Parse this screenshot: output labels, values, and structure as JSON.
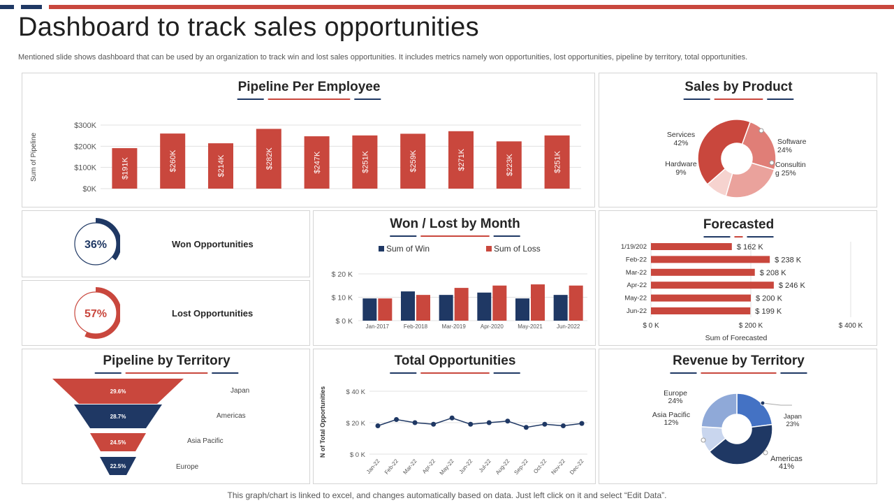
{
  "colors": {
    "red": "#c9473d",
    "navy": "#1f3864",
    "light_red": "#e8908a",
    "pale_red": "#f3c9c5",
    "blue": "#4472c4",
    "light_blue": "#8fa9d8",
    "pale_blue": "#c9d6ee",
    "grid": "#e0e0e0",
    "axis_text": "#555555"
  },
  "page": {
    "title": "Dashboard to track sales opportunities",
    "subtitle": "Mentioned slide shows dashboard that can be used by an organization to track win and lost sales opportunities. It includes metrics namely won opportunities, lost opportunities, pipeline by territory, total opportunities.",
    "footer": "This graph/chart is linked to excel, and changes automatically based on data. Just left click on it and select “Edit Data”."
  },
  "kpis": {
    "won": {
      "value_label": "36%",
      "value": 36,
      "label": "Won Opportunities"
    },
    "lost": {
      "value_label": "57%",
      "value": 57,
      "label": "Lost Opportunities"
    }
  },
  "chart_data": [
    {
      "id": "pipeline_per_employee",
      "type": "bar",
      "title": "Pipeline Per Employee",
      "ylabel": "Sum of Pipeline",
      "xlabel": "",
      "ylim": [
        0,
        300
      ],
      "yticks": [
        "$0K",
        "$100K",
        "$200K",
        "$300K"
      ],
      "values": [
        191,
        260,
        214,
        282,
        247,
        251,
        259,
        271,
        223,
        251
      ],
      "labels": [
        "$191K",
        "$260K",
        "$214K",
        "$282K",
        "$247K",
        "$251K",
        "$259K",
        "$271K",
        "$223K",
        "$251K"
      ]
    },
    {
      "id": "sales_by_product",
      "type": "pie",
      "title": "Sales by Product",
      "slices": [
        {
          "name": "Software",
          "value": 24,
          "label": "Software\n24%"
        },
        {
          "name": "Consulting",
          "value": 25,
          "label": "Consultin\ng 25%"
        },
        {
          "name": "Hardware",
          "value": 9,
          "label": "Hardware\n9%"
        },
        {
          "name": "Services",
          "value": 42,
          "label": "Services\n42%"
        }
      ]
    },
    {
      "id": "won_lost_by_month",
      "type": "bar",
      "title": "Won / Lost by Month",
      "categories": [
        "Jan-2017",
        "Feb-2018",
        "Mar-2019",
        "Apr-2020",
        "May-2021",
        "Jun-2022"
      ],
      "series": [
        {
          "name": "Sum of Win",
          "values": [
            9.5,
            12.5,
            11,
            12,
            9.5,
            11
          ]
        },
        {
          "name": "Sum of Loss",
          "values": [
            9.5,
            11,
            14,
            15,
            15.5,
            15
          ]
        }
      ],
      "ylim": [
        0,
        20
      ],
      "yticks": [
        "$ 0 K",
        "$ 10 K",
        "$ 20 K"
      ]
    },
    {
      "id": "forecasted",
      "type": "bar",
      "title": "Forecasted",
      "orientation": "horizontal",
      "categories": [
        "1/19/202",
        "Feb-22",
        "Mar-22",
        "Apr-22",
        "May-22",
        "Jun-22"
      ],
      "values": [
        162,
        238,
        208,
        246,
        200,
        199
      ],
      "labels": [
        "$ 162 K",
        "$ 238 K",
        "$ 208 K",
        "$ 246 K",
        "$ 200 K",
        "$ 199 K"
      ],
      "xlim": [
        0,
        400
      ],
      "xticks": [
        "$ 0 K",
        "$ 200 K",
        "$ 400 K"
      ],
      "xlabel": "Sum of Forecasted"
    },
    {
      "id": "pipeline_by_territory",
      "type": "bar",
      "subtype": "funnel",
      "title": "Pipeline by Territory",
      "categories": [
        "Japan",
        "Americas",
        "Asia Pacific",
        "Europe"
      ],
      "values": [
        29.6,
        28.7,
        24.5,
        22.5
      ],
      "labels": [
        "29.6%",
        "28.7%",
        "24.5%",
        "22.5%"
      ]
    },
    {
      "id": "total_opportunities",
      "type": "line",
      "title": "Total Opportunities",
      "ylabel": "N of Total Opportunities",
      "x": [
        "Jan-22",
        "Feb-22",
        "Mar-22",
        "Apr-22",
        "May-22",
        "Jun-22",
        "Jul-22",
        "Aug-22",
        "Sep-22",
        "Oct-22",
        "Nov-22",
        "Dec-22"
      ],
      "values": [
        18,
        22,
        20,
        19,
        23,
        19,
        20,
        21,
        17,
        19,
        18,
        19.5
      ],
      "ylim": [
        0,
        40
      ],
      "yticks": [
        "$ 0 K",
        "$ 20 K",
        "$ 40 K"
      ]
    },
    {
      "id": "revenue_by_territory",
      "type": "pie",
      "title": "Revenue by Territory",
      "slices": [
        {
          "name": "Japan",
          "value": 23,
          "label": "Japan\n23%"
        },
        {
          "name": "Americas",
          "value": 41,
          "label": "Americas\n41%"
        },
        {
          "name": "Asia Pacific",
          "value": 12,
          "label": "Asia Pacific\n12%"
        },
        {
          "name": "Europe",
          "value": 24,
          "label": "Europe\n24%"
        }
      ]
    }
  ]
}
